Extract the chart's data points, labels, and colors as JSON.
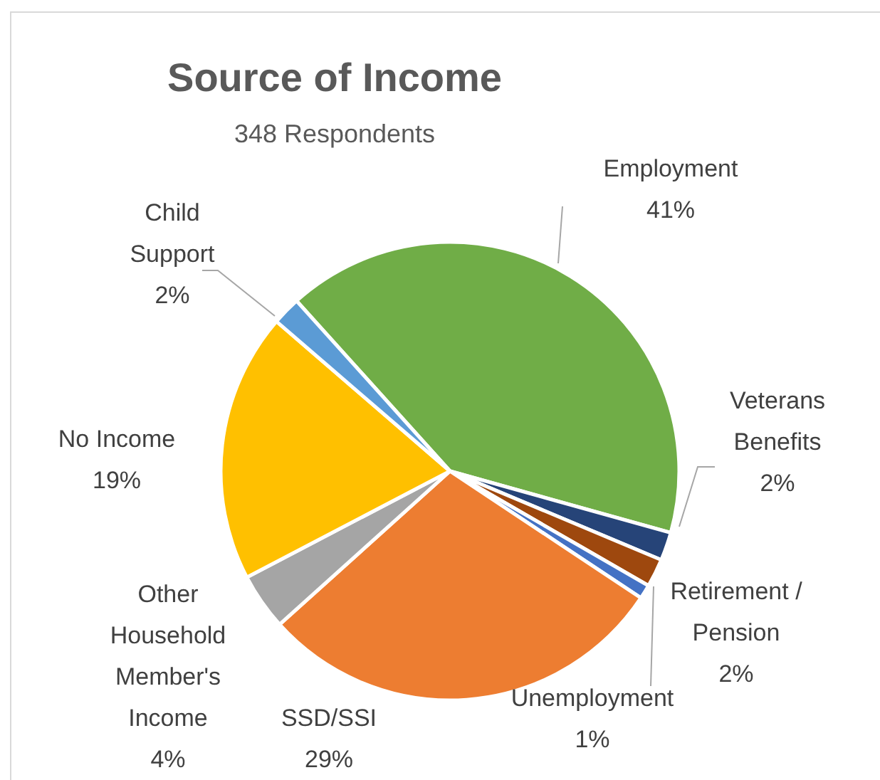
{
  "chart_data": {
    "type": "pie",
    "title": "Source of Income",
    "subtitle": "348 Respondents",
    "categories": [
      "Employment",
      "Veterans Benefits",
      "Retirement / Pension",
      "Unemployment",
      "SSD/SSI",
      "Other Household Member's Income",
      "No Income",
      "Child Support"
    ],
    "values": [
      41,
      2,
      2,
      1,
      29,
      4,
      19,
      2
    ],
    "value_labels": [
      "41%",
      "2%",
      "2%",
      "1%",
      "29%",
      "4%",
      "19%",
      "2%"
    ],
    "colors": [
      "#70ad47",
      "#264478",
      "#9e480e",
      "#4472c4",
      "#ed7d31",
      "#a5a5a5",
      "#ffc000",
      "#5b9bd5"
    ]
  }
}
